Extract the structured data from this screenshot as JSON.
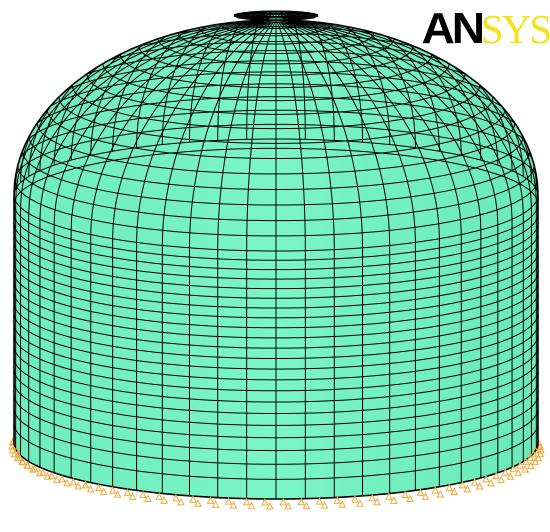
{
  "logo": {
    "part_dark": "AN",
    "part_light": "SYS"
  },
  "colors": {
    "background": "#ffffff",
    "surface": "#74f2c2",
    "mesh_line": "#000000",
    "constraint": "#f3a93a",
    "logo_dark": "#000000",
    "logo_light": "#f3e318"
  },
  "icons": {
    "constraint_marker": "triangle-support"
  }
}
